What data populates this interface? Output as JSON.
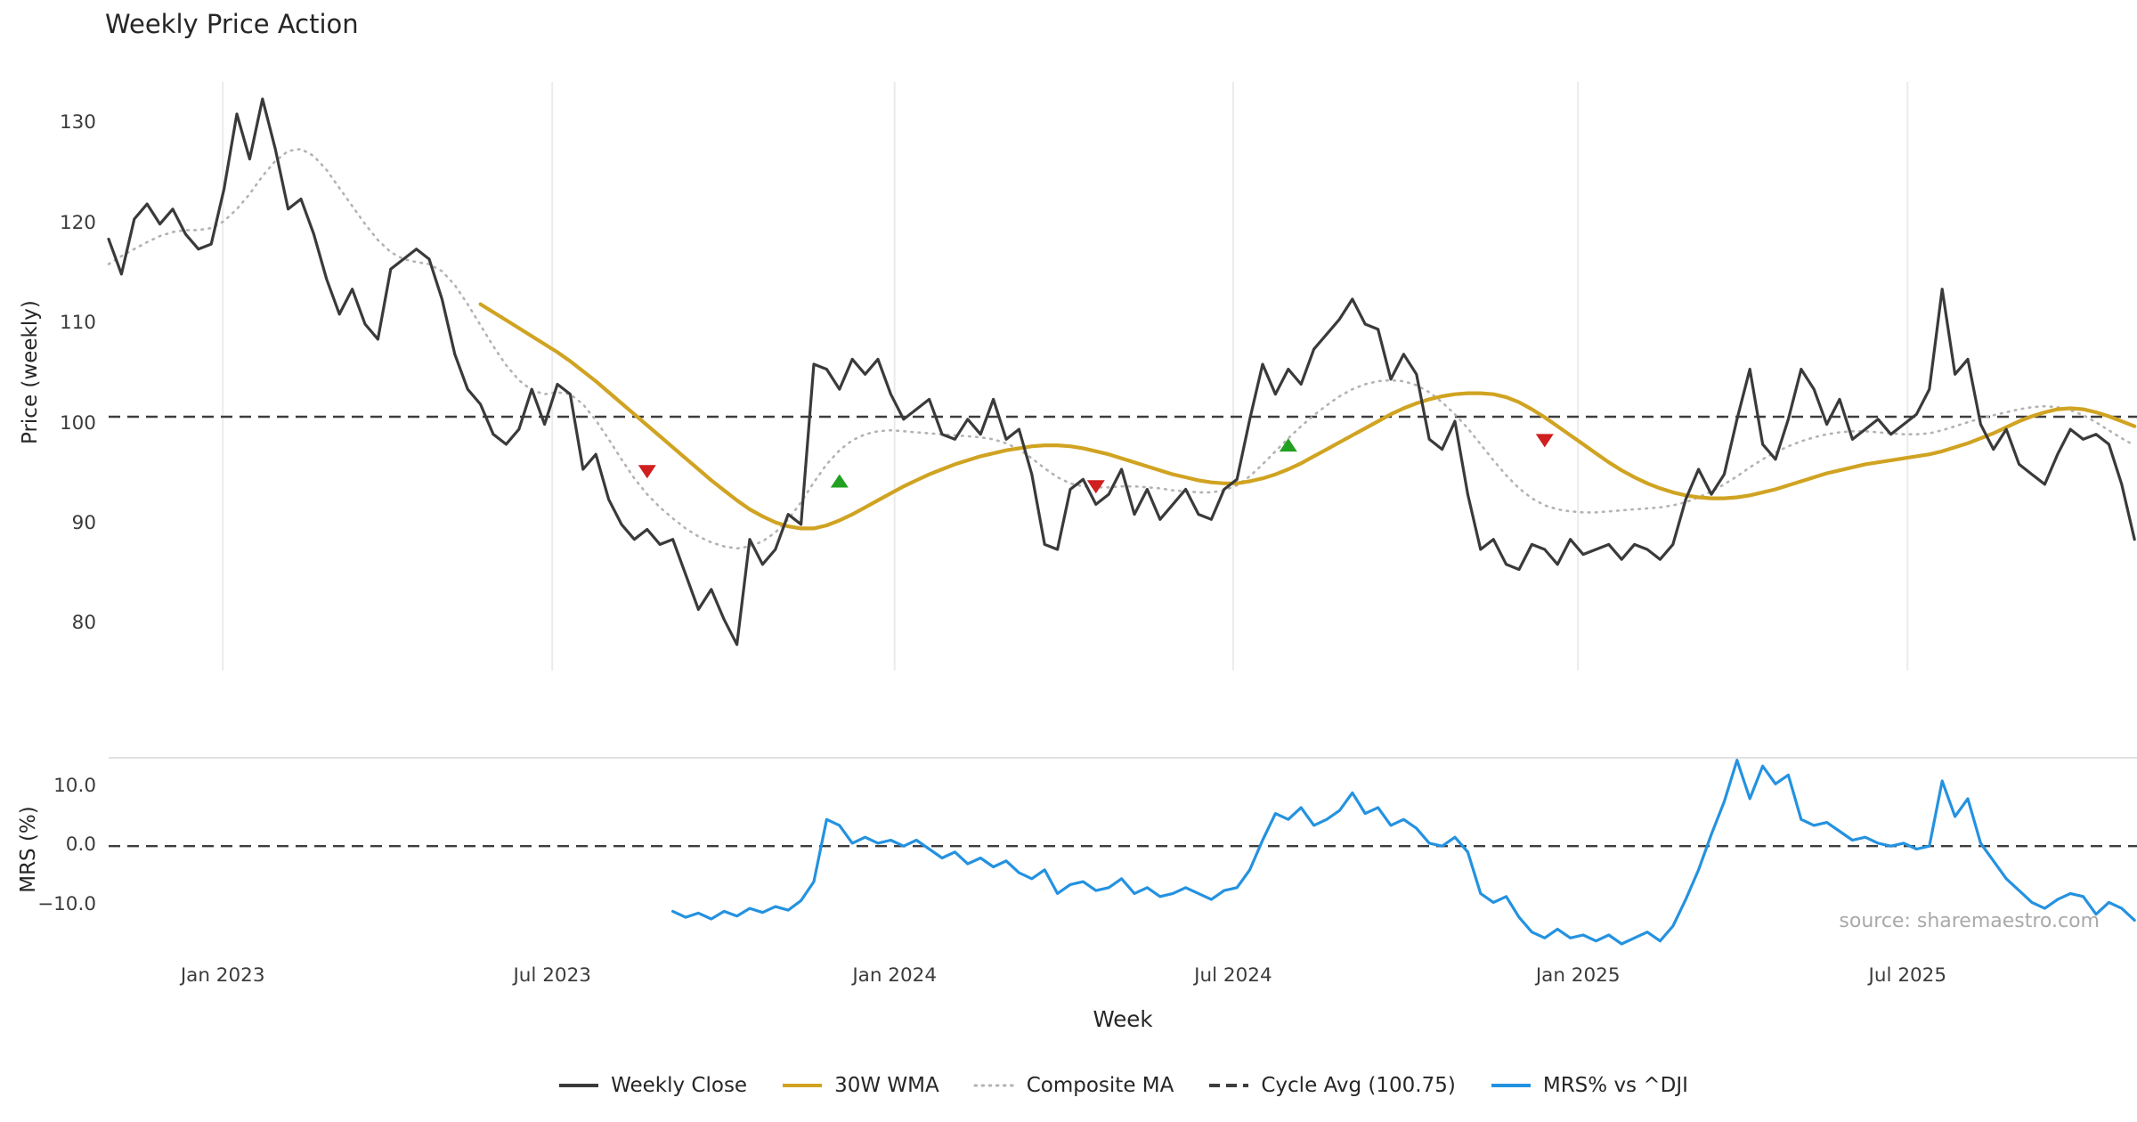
{
  "title": "Weekly Price Action",
  "source_note": "source: sharemaestro.com",
  "axes": {
    "x_label": "Week",
    "price_label": "Price (weekly)",
    "mrs_label": "MRS (%)"
  },
  "legend": [
    {
      "label": "Weekly Close",
      "color": "#3a3a3a",
      "style": "solid"
    },
    {
      "label": "30W WMA",
      "color": "#d0a321",
      "style": "solid"
    },
    {
      "label": "Composite MA",
      "color": "#b3b3b3",
      "style": "dotted"
    },
    {
      "label": "Cycle Avg (100.75)",
      "color": "#3d3d3d",
      "style": "dashed"
    },
    {
      "label": "MRS% vs ^DJI",
      "color": "#2492e0",
      "style": "solid"
    }
  ],
  "chart_data": [
    {
      "type": "line",
      "panel": "price",
      "title": "Weekly Price Action",
      "ylabel": "Price (weekly)",
      "ylim": [
        75.4,
        134.2
      ],
      "y_ticks": [
        130,
        120,
        110,
        100,
        90,
        80
      ],
      "x_ticks": [
        {
          "label": "Jan 2023",
          "week_index": 8.9
        },
        {
          "label": "Jul 2023",
          "week_index": 34.6
        },
        {
          "label": "Jan 2024",
          "week_index": 61.3
        },
        {
          "label": "Jul 2024",
          "week_index": 87.7
        },
        {
          "label": "Jan 2025",
          "week_index": 114.6
        },
        {
          "label": "Jul 2025",
          "week_index": 140.3
        }
      ],
      "series": [
        {
          "name": "Weekly Close",
          "color": "#3a3a3a",
          "style": "solid",
          "width": 3.2,
          "start_index": 0,
          "values": [
            118.5,
            115,
            120.5,
            122,
            120,
            121.5,
            119,
            117.5,
            118,
            123.5,
            131,
            126.5,
            132.5,
            127.5,
            121.5,
            122.5,
            119,
            114.5,
            111,
            113.5,
            110,
            108.5,
            115.5,
            116.5,
            117.5,
            116.5,
            112.5,
            107,
            103.5,
            102,
            99,
            98,
            99.5,
            103.5,
            100,
            104,
            103,
            95.5,
            97,
            92.5,
            90,
            88.5,
            89.5,
            88,
            88.5,
            85,
            81.5,
            83.5,
            80.5,
            78,
            88.5,
            86,
            87.5,
            91,
            90,
            106,
            105.5,
            103.5,
            106.5,
            105,
            106.5,
            103,
            100.5,
            101.5,
            102.5,
            99,
            98.5,
            100.5,
            99,
            102.5,
            98.5,
            99.5,
            95,
            88,
            87.5,
            93.5,
            94.5,
            92,
            93,
            95.5,
            91,
            93.5,
            90.5,
            92,
            93.5,
            91,
            90.5,
            93.5,
            94.5,
            100.5,
            106,
            103,
            105.5,
            104,
            107.5,
            109,
            110.5,
            112.5,
            110,
            109.5,
            104.5,
            107,
            105,
            98.5,
            97.5,
            100.3,
            93,
            87.5,
            88.5,
            86,
            85.5,
            88,
            87.5,
            86,
            88.5,
            87,
            87.5,
            88,
            86.5,
            88,
            87.5,
            86.5,
            88,
            92.5,
            95.5,
            93,
            95,
            100.5,
            105.5,
            98,
            96.5,
            100.5,
            105.5,
            103.5,
            100,
            102.5,
            98.5,
            99.5,
            100.5,
            99,
            100,
            101,
            103.5,
            113.5,
            105,
            106.5,
            100,
            97.5,
            99.5,
            96,
            95,
            94,
            97,
            99.5,
            98.5,
            99,
            98,
            94,
            88.5
          ]
        },
        {
          "name": "30W WMA",
          "color": "#d0a321",
          "style": "solid",
          "width": 4.2,
          "start_index": 29,
          "values": [
            112,
            111.2,
            110.4,
            109.6,
            108.8,
            108,
            107.2,
            106.3,
            105.3,
            104.3,
            103.2,
            102.1,
            101,
            99.9,
            98.8,
            97.7,
            96.6,
            95.5,
            94.4,
            93.4,
            92.4,
            91.5,
            90.8,
            90.2,
            89.8,
            89.6,
            89.6,
            89.9,
            90.4,
            91,
            91.7,
            92.4,
            93.1,
            93.8,
            94.4,
            95,
            95.5,
            96,
            96.4,
            96.8,
            97.1,
            97.4,
            97.6,
            97.8,
            97.9,
            97.9,
            97.8,
            97.6,
            97.3,
            97,
            96.6,
            96.2,
            95.8,
            95.4,
            95,
            94.7,
            94.4,
            94.2,
            94.1,
            94.1,
            94.3,
            94.6,
            95,
            95.5,
            96.1,
            96.8,
            97.5,
            98.2,
            98.9,
            99.6,
            100.3,
            101,
            101.6,
            102.1,
            102.5,
            102.8,
            103,
            103.1,
            103.1,
            103,
            102.7,
            102.2,
            101.5,
            100.7,
            99.8,
            98.9,
            98,
            97.1,
            96.2,
            95.4,
            94.7,
            94.1,
            93.6,
            93.2,
            92.9,
            92.7,
            92.6,
            92.6,
            92.7,
            92.9,
            93.2,
            93.5,
            93.9,
            94.3,
            94.7,
            95.1,
            95.4,
            95.7,
            96,
            96.2,
            96.4,
            96.6,
            96.8,
            97,
            97.3,
            97.7,
            98.1,
            98.6,
            99.1,
            99.7,
            100.3,
            100.8,
            101.2,
            101.5,
            101.6,
            101.5,
            101.2,
            100.8,
            100.3,
            99.8
          ]
        },
        {
          "name": "Composite MA",
          "color": "#b3b3b3",
          "style": "dotted",
          "width": 2.6,
          "start_index": 0,
          "values": [
            116,
            116.8,
            117.5,
            118.2,
            118.8,
            119.2,
            119.4,
            119.4,
            119.6,
            120.3,
            121.5,
            123,
            124.8,
            126.3,
            127.3,
            127.5,
            126.8,
            125.4,
            123.6,
            121.8,
            120,
            118.4,
            117.2,
            116.5,
            116.2,
            116,
            115.3,
            113.9,
            112,
            109.9,
            107.8,
            105.9,
            104.4,
            103.4,
            103,
            103.2,
            103,
            102,
            100.4,
            98.5,
            96.5,
            94.6,
            93,
            91.7,
            90.6,
            89.6,
            88.8,
            88.2,
            87.8,
            87.6,
            87.8,
            88.3,
            89.2,
            90.5,
            92.2,
            94.2,
            96,
            97.4,
            98.4,
            99,
            99.3,
            99.4,
            99.3,
            99.2,
            99.1,
            99,
            98.9,
            98.8,
            98.7,
            98.5,
            98.1,
            97.5,
            96.6,
            95.6,
            94.7,
            94.1,
            93.8,
            93.7,
            93.7,
            93.8,
            93.8,
            93.7,
            93.6,
            93.4,
            93.3,
            93.2,
            93.2,
            93.4,
            93.9,
            94.8,
            96,
            97.3,
            98.6,
            99.8,
            100.9,
            101.9,
            102.8,
            103.5,
            104,
            104.3,
            104.4,
            104.3,
            103.9,
            103.2,
            102.2,
            101,
            99.6,
            98,
            96.4,
            94.9,
            93.6,
            92.6,
            91.9,
            91.5,
            91.3,
            91.2,
            91.2,
            91.3,
            91.4,
            91.5,
            91.6,
            91.7,
            91.9,
            92.2,
            92.7,
            93.3,
            94,
            94.8,
            95.7,
            96.5,
            97.2,
            97.8,
            98.3,
            98.7,
            99,
            99.2,
            99.3,
            99.3,
            99.2,
            99.1,
            99,
            99,
            99.1,
            99.4,
            99.8,
            100.2,
            100.6,
            100.9,
            101.2,
            101.5,
            101.7,
            101.8,
            101.7,
            101.4,
            100.9,
            100.2,
            99.4,
            98.6,
            97.9
          ]
        },
        {
          "name": "Cycle Avg (100.75)",
          "color": "#3d3d3d",
          "style": "dashed",
          "width": 2.6,
          "constant": 100.75
        }
      ],
      "markers": [
        {
          "name": "sell-signal",
          "shape": "triangle-down",
          "color": "#cf1f1f",
          "points": [
            {
              "week_index": 42,
              "price": 95.3
            },
            {
              "week_index": 77,
              "price": 93.8
            },
            {
              "week_index": 112,
              "price": 98.4
            }
          ]
        },
        {
          "name": "buy-signal",
          "shape": "triangle-up",
          "color": "#22a022",
          "points": [
            {
              "week_index": 57,
              "price": 94.3
            },
            {
              "week_index": 92,
              "price": 97.9
            }
          ]
        }
      ]
    },
    {
      "type": "line",
      "panel": "mrs",
      "ylabel": "MRS (%)",
      "xlabel": "Week",
      "ylim": [
        -17.1,
        14.9
      ],
      "y_ticks": [
        10,
        0,
        -10
      ],
      "y_tick_labels": [
        "10.0",
        "0.0",
        "−10.0"
      ],
      "series": [
        {
          "name": "MRS% vs ^DJI",
          "color": "#2492e0",
          "style": "solid",
          "width": 3.2,
          "start_index": 44,
          "values": [
            -11,
            -12,
            -11.3,
            -12.3,
            -11,
            -11.8,
            -10.5,
            -11.2,
            -10.2,
            -10.8,
            -9.2,
            -6,
            4.5,
            3.5,
            0.5,
            1.5,
            0.5,
            1,
            0,
            1,
            -0.5,
            -2,
            -1,
            -3,
            -2,
            -3.5,
            -2.5,
            -4.5,
            -5.5,
            -4,
            -8,
            -6.5,
            -6,
            -7.5,
            -7,
            -5.5,
            -8,
            -7,
            -8.5,
            -8,
            -7,
            -8,
            -9,
            -7.5,
            -7,
            -4,
            1,
            5.5,
            4.5,
            6.5,
            3.5,
            4.5,
            6,
            9,
            5.5,
            6.5,
            3.5,
            4.5,
            3,
            0.5,
            0,
            1.5,
            -1,
            -8,
            -9.5,
            -8.5,
            -12,
            -14.5,
            -15.5,
            -14,
            -15.5,
            -15,
            -16,
            -15,
            -16.5,
            -15.5,
            -14.5,
            -16,
            -13.5,
            -9,
            -4,
            2,
            7.5,
            14.5,
            8,
            13.5,
            10.5,
            12,
            4.5,
            3.5,
            4,
            2.5,
            1,
            1.5,
            0.5,
            0,
            0.5,
            -0.5,
            0,
            11,
            5,
            8,
            0.5,
            -2.5,
            -5.5,
            -7.5,
            -9.5,
            -10.5,
            -9,
            -8,
            -8.5,
            -11.5,
            -9.5,
            -10.5,
            -12.5
          ]
        },
        {
          "name": "Zero Line",
          "color": "#3d3d3d",
          "style": "dashed",
          "width": 2.4,
          "constant": 0
        }
      ]
    }
  ]
}
